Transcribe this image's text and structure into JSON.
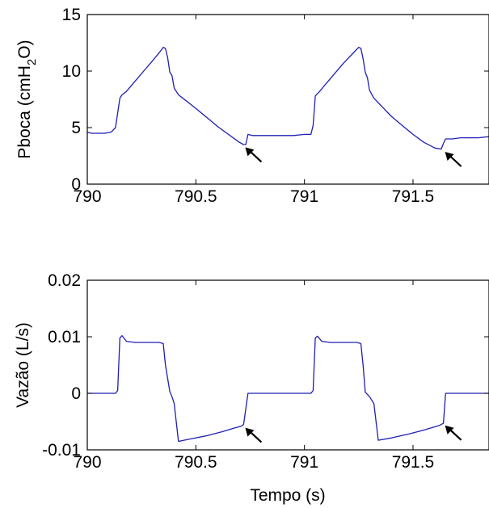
{
  "colors": {
    "series": "#1f1fb4",
    "axes": "#000000",
    "background": "#ffffff"
  },
  "chart_data": [
    {
      "type": "line",
      "title": "",
      "xlabel": "",
      "ylabel": "Pboca (cmH",
      "ylabel_subscript": "2",
      "ylabel_suffix": "O)",
      "xlim": [
        790,
        791.85
      ],
      "ylim": [
        0,
        15
      ],
      "xticks": [
        790,
        790.5,
        791,
        791.5
      ],
      "xtick_labels": [
        "790",
        "790.5",
        "791",
        "791.5"
      ],
      "yticks": [
        0,
        5,
        10,
        15
      ],
      "ytick_labels": [
        "0",
        "5",
        "10",
        "15"
      ],
      "grid": false,
      "series": [
        {
          "x": [
            790.0,
            790.02,
            790.05,
            790.08,
            790.11,
            790.13,
            790.15,
            790.16,
            790.18,
            790.22,
            790.26,
            790.3,
            790.33,
            790.35,
            790.36,
            790.37,
            790.38,
            790.39,
            790.4,
            790.42,
            790.46,
            790.5,
            790.55,
            790.6,
            790.65,
            790.7,
            790.72,
            790.73,
            790.74,
            790.76,
            790.8,
            790.85,
            790.9,
            790.95,
            791.0,
            791.03,
            791.04,
            791.05,
            791.07,
            791.1,
            791.14,
            791.18,
            791.22,
            791.25,
            791.26,
            791.27,
            791.28,
            791.29,
            791.3,
            791.32,
            791.36,
            791.4,
            791.45,
            791.5,
            791.55,
            791.6,
            791.63,
            791.64,
            791.65,
            791.68,
            791.72,
            791.76,
            791.8,
            791.85
          ],
          "y": [
            4.6,
            4.5,
            4.5,
            4.5,
            4.6,
            5.0,
            7.6,
            7.9,
            8.2,
            9.1,
            10.0,
            10.9,
            11.6,
            12.1,
            12.0,
            11.2,
            9.9,
            9.6,
            8.5,
            7.9,
            7.3,
            6.7,
            5.9,
            5.1,
            4.4,
            3.7,
            3.5,
            3.5,
            4.4,
            4.3,
            4.3,
            4.3,
            4.3,
            4.3,
            4.4,
            4.4,
            5.2,
            7.8,
            8.2,
            8.9,
            9.8,
            10.7,
            11.5,
            12.1,
            12.0,
            11.1,
            9.9,
            9.4,
            8.3,
            7.6,
            6.8,
            6.0,
            5.2,
            4.4,
            3.7,
            3.2,
            3.1,
            3.6,
            4.0,
            4.0,
            4.1,
            4.1,
            4.1,
            4.2
          ]
        }
      ],
      "annotations": [
        {
          "type": "arrow",
          "x": 790.72,
          "y": 3.4
        },
        {
          "type": "arrow",
          "x": 791.64,
          "y": 3.0
        }
      ]
    },
    {
      "type": "line",
      "title": "",
      "xlabel": "Tempo (s)",
      "ylabel": "Vazão (L/s)",
      "xlim": [
        790,
        791.85
      ],
      "ylim": [
        -0.01,
        0.02
      ],
      "xticks": [
        790,
        790.5,
        791,
        791.5
      ],
      "xtick_labels": [
        "790",
        "790.5",
        "791",
        "791.5"
      ],
      "yticks": [
        -0.01,
        0,
        0.01,
        0.02
      ],
      "ytick_labels": [
        "-0.01",
        "0",
        "0.01",
        "0.02"
      ],
      "grid": false,
      "series": [
        {
          "x": [
            790.0,
            790.05,
            790.1,
            790.13,
            790.14,
            790.15,
            790.16,
            790.18,
            790.22,
            790.28,
            790.33,
            790.35,
            790.36,
            790.38,
            790.39,
            790.4,
            790.42,
            790.47,
            790.55,
            790.62,
            790.68,
            790.71,
            790.72,
            790.74,
            790.8,
            790.9,
            791.0,
            791.03,
            791.04,
            791.05,
            791.06,
            791.08,
            791.12,
            791.18,
            791.24,
            791.26,
            791.27,
            791.28,
            791.3,
            791.32,
            791.34,
            791.4,
            791.48,
            791.55,
            791.62,
            791.64,
            791.65,
            791.67,
            791.72,
            791.8,
            791.85
          ],
          "y": [
            0.0,
            0.0,
            0.0,
            0.0,
            0.0005,
            0.0098,
            0.0102,
            0.0092,
            0.009,
            0.009,
            0.009,
            0.0088,
            0.005,
            0.0003,
            -0.0006,
            -0.0018,
            -0.0085,
            -0.0081,
            -0.0075,
            -0.0068,
            -0.0061,
            -0.0058,
            -0.0055,
            0.0,
            0.0,
            0.0,
            0.0,
            0.0,
            0.0005,
            0.0098,
            0.0101,
            0.0092,
            0.009,
            0.009,
            0.009,
            0.0088,
            0.005,
            0.0002,
            -0.0006,
            -0.0018,
            -0.0083,
            -0.0079,
            -0.0072,
            -0.0065,
            -0.0057,
            -0.0053,
            0.0,
            0.0,
            0.0,
            0.0,
            0.0
          ]
        }
      ],
      "annotations": [
        {
          "type": "arrow",
          "x": 790.72,
          "y": -0.0058
        },
        {
          "type": "arrow",
          "x": 791.64,
          "y": -0.0054
        }
      ]
    }
  ]
}
